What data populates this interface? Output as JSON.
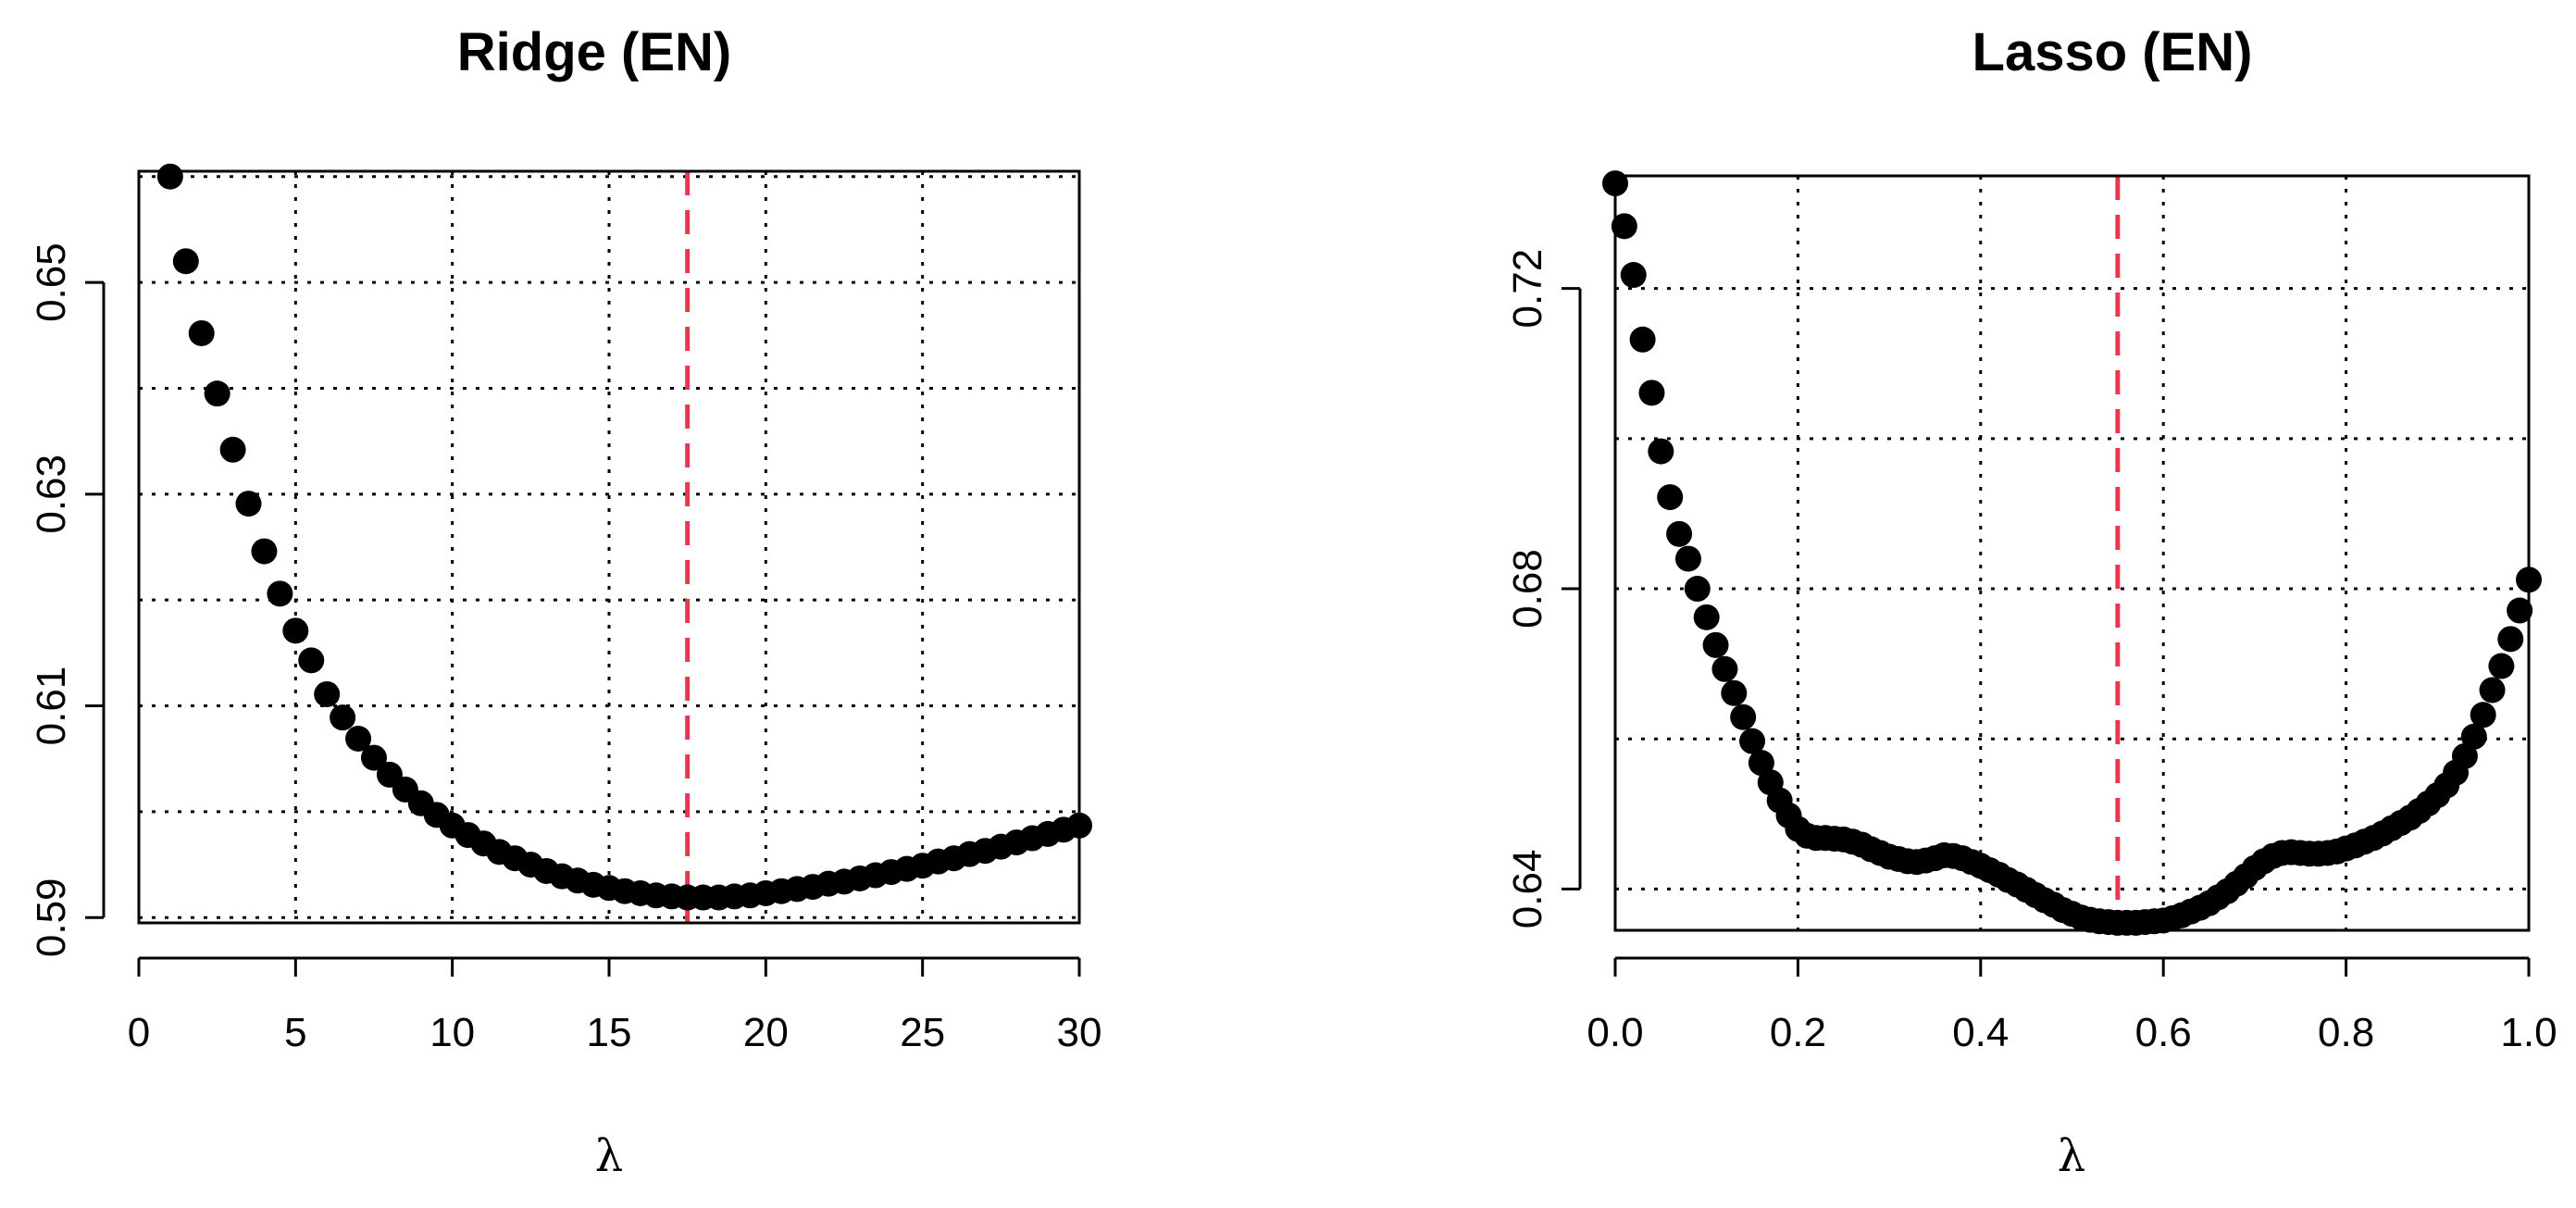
{
  "chart_data": [
    {
      "type": "scatter",
      "title": "Ridge (EN)",
      "xlabel": "λ",
      "ylabel": "",
      "xlim": [
        0,
        30
      ],
      "ylim": [
        0.5895,
        0.6605
      ],
      "xticks": [
        0,
        5,
        10,
        15,
        20,
        25,
        30
      ],
      "xtick_labels": [
        "0",
        "5",
        "10",
        "15",
        "20",
        "25",
        "30"
      ],
      "yticks": [
        0.59,
        0.61,
        0.63,
        0.65
      ],
      "ytick_labels": [
        "0.59",
        "0.61",
        "0.63",
        "0.65"
      ],
      "xgrid": [
        5,
        10,
        15,
        20,
        25,
        30
      ],
      "ygrid": [
        0.59,
        0.6,
        0.61,
        0.62,
        0.63,
        0.64,
        0.65,
        0.66
      ],
      "grid": true,
      "reference_line": {
        "x": 17.5,
        "color": "#e8374f",
        "style": "dashed"
      },
      "x": [
        1.0,
        1.5,
        2.0,
        2.5,
        3.0,
        3.5,
        4.0,
        4.5,
        5.0,
        5.5,
        6.0,
        6.5,
        7.0,
        7.5,
        8.0,
        8.5,
        9.0,
        9.5,
        10.0,
        10.5,
        11.0,
        11.5,
        12.0,
        12.5,
        13.0,
        13.5,
        14.0,
        14.5,
        15.0,
        15.5,
        16.0,
        16.5,
        17.0,
        17.5,
        18.0,
        18.5,
        19.0,
        19.5,
        20.0,
        20.5,
        21.0,
        21.5,
        22.0,
        22.5,
        23.0,
        23.5,
        24.0,
        24.5,
        25.0,
        25.5,
        26.0,
        26.5,
        27.0,
        27.5,
        28.0,
        28.5,
        29.0,
        29.5,
        30.0
      ],
      "y": [
        0.66,
        0.652,
        0.6452,
        0.6395,
        0.6342,
        0.6291,
        0.6246,
        0.6206,
        0.6171,
        0.6143,
        0.6111,
        0.6089,
        0.6069,
        0.6051,
        0.6035,
        0.6021,
        0.6008,
        0.5997,
        0.5987,
        0.5978,
        0.597,
        0.5962,
        0.5956,
        0.595,
        0.5944,
        0.5939,
        0.5935,
        0.5931,
        0.5928,
        0.5925,
        0.5923,
        0.5921,
        0.592,
        0.5919,
        0.5919,
        0.5919,
        0.592,
        0.5921,
        0.5923,
        0.5925,
        0.5927,
        0.5929,
        0.5932,
        0.5934,
        0.5937,
        0.594,
        0.5943,
        0.5946,
        0.5949,
        0.5953,
        0.5956,
        0.596,
        0.5963,
        0.5967,
        0.5971,
        0.5975,
        0.5979,
        0.5983,
        0.5987
      ]
    },
    {
      "type": "scatter",
      "title": "Lasso (EN)",
      "xlabel": "λ",
      "ylabel": "",
      "xlim": [
        0,
        1
      ],
      "ylim": [
        0.6345,
        0.735
      ],
      "xticks": [
        0.0,
        0.2,
        0.4,
        0.6,
        0.8,
        1.0
      ],
      "xtick_labels": [
        "0.0",
        "0.2",
        "0.4",
        "0.6",
        "0.8",
        "1.0"
      ],
      "yticks": [
        0.64,
        0.68,
        0.72
      ],
      "ytick_labels": [
        "0.64",
        "0.68",
        "0.72"
      ],
      "xgrid": [
        0.2,
        0.4,
        0.6,
        0.8,
        1.0
      ],
      "ygrid": [
        0.64,
        0.66,
        0.68,
        0.7,
        0.72,
        0.74
      ],
      "grid": true,
      "reference_line": {
        "x": 0.55,
        "color": "#e8374f",
        "style": "dashed"
      },
      "x": [
        0.0,
        0.01,
        0.02,
        0.03,
        0.04,
        0.05,
        0.06,
        0.07,
        0.08,
        0.09,
        0.1,
        0.11,
        0.12,
        0.13,
        0.14,
        0.15,
        0.16,
        0.17,
        0.18,
        0.19,
        0.2,
        0.21,
        0.22,
        0.23,
        0.24,
        0.25,
        0.26,
        0.27,
        0.28,
        0.29,
        0.3,
        0.31,
        0.32,
        0.33,
        0.34,
        0.35,
        0.36,
        0.37,
        0.38,
        0.39,
        0.4,
        0.41,
        0.42,
        0.43,
        0.44,
        0.45,
        0.46,
        0.47,
        0.48,
        0.49,
        0.5,
        0.51,
        0.52,
        0.53,
        0.54,
        0.55,
        0.56,
        0.57,
        0.58,
        0.59,
        0.6,
        0.61,
        0.62,
        0.63,
        0.64,
        0.65,
        0.66,
        0.67,
        0.68,
        0.69,
        0.7,
        0.71,
        0.72,
        0.73,
        0.74,
        0.75,
        0.76,
        0.77,
        0.78,
        0.79,
        0.8,
        0.81,
        0.82,
        0.83,
        0.84,
        0.85,
        0.86,
        0.87,
        0.88,
        0.89,
        0.9,
        0.91,
        0.92,
        0.93,
        0.94,
        0.95,
        0.96,
        0.97,
        0.98,
        0.99,
        1.0
      ],
      "y": [
        0.734,
        0.7283,
        0.7218,
        0.7132,
        0.7061,
        0.6983,
        0.6922,
        0.6873,
        0.684,
        0.68,
        0.6762,
        0.6725,
        0.6693,
        0.6661,
        0.6629,
        0.6597,
        0.6568,
        0.6542,
        0.6518,
        0.6498,
        0.648,
        0.6471,
        0.6468,
        0.6468,
        0.6467,
        0.6466,
        0.6463,
        0.6459,
        0.6453,
        0.6448,
        0.6443,
        0.644,
        0.6437,
        0.6436,
        0.6438,
        0.6441,
        0.6445,
        0.6444,
        0.6441,
        0.6436,
        0.6431,
        0.6425,
        0.6419,
        0.6412,
        0.6406,
        0.6399,
        0.6392,
        0.6385,
        0.6379,
        0.6372,
        0.6367,
        0.6362,
        0.6359,
        0.6357,
        0.6356,
        0.6355,
        0.6355,
        0.6355,
        0.6356,
        0.6357,
        0.6358,
        0.6361,
        0.6365,
        0.637,
        0.6375,
        0.6381,
        0.6389,
        0.6397,
        0.6407,
        0.6417,
        0.6428,
        0.6437,
        0.6444,
        0.6448,
        0.6449,
        0.6448,
        0.6447,
        0.6447,
        0.6448,
        0.645,
        0.6454,
        0.6458,
        0.6463,
        0.6468,
        0.6474,
        0.6481,
        0.6488,
        0.6495,
        0.6504,
        0.6514,
        0.6525,
        0.6538,
        0.6555,
        0.6577,
        0.6603,
        0.6632,
        0.6665,
        0.6697,
        0.6733,
        0.6771,
        0.6812
      ]
    }
  ]
}
